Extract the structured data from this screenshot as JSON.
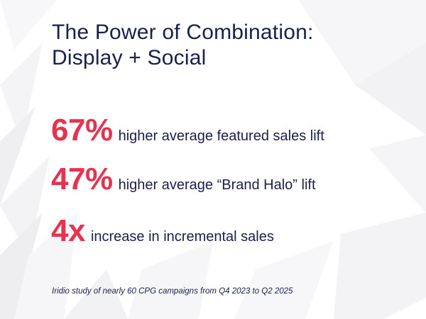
{
  "slide": {
    "title_line_1": "The Power of Combination:",
    "title_line_2": "Display + Social",
    "stats": [
      {
        "value": "67%",
        "description": "higher average featured sales lift"
      },
      {
        "value": "47%",
        "description": "higher average “Brand Halo” lift"
      },
      {
        "value": "4x",
        "description": "increase in incremental sales"
      }
    ],
    "footnote": "Iridio study of nearly 60 CPG campaigns from Q4 2023 to Q2 2025"
  },
  "colors": {
    "accent": "#e63350",
    "text": "#1b1f4b",
    "background": "#ffffff"
  }
}
